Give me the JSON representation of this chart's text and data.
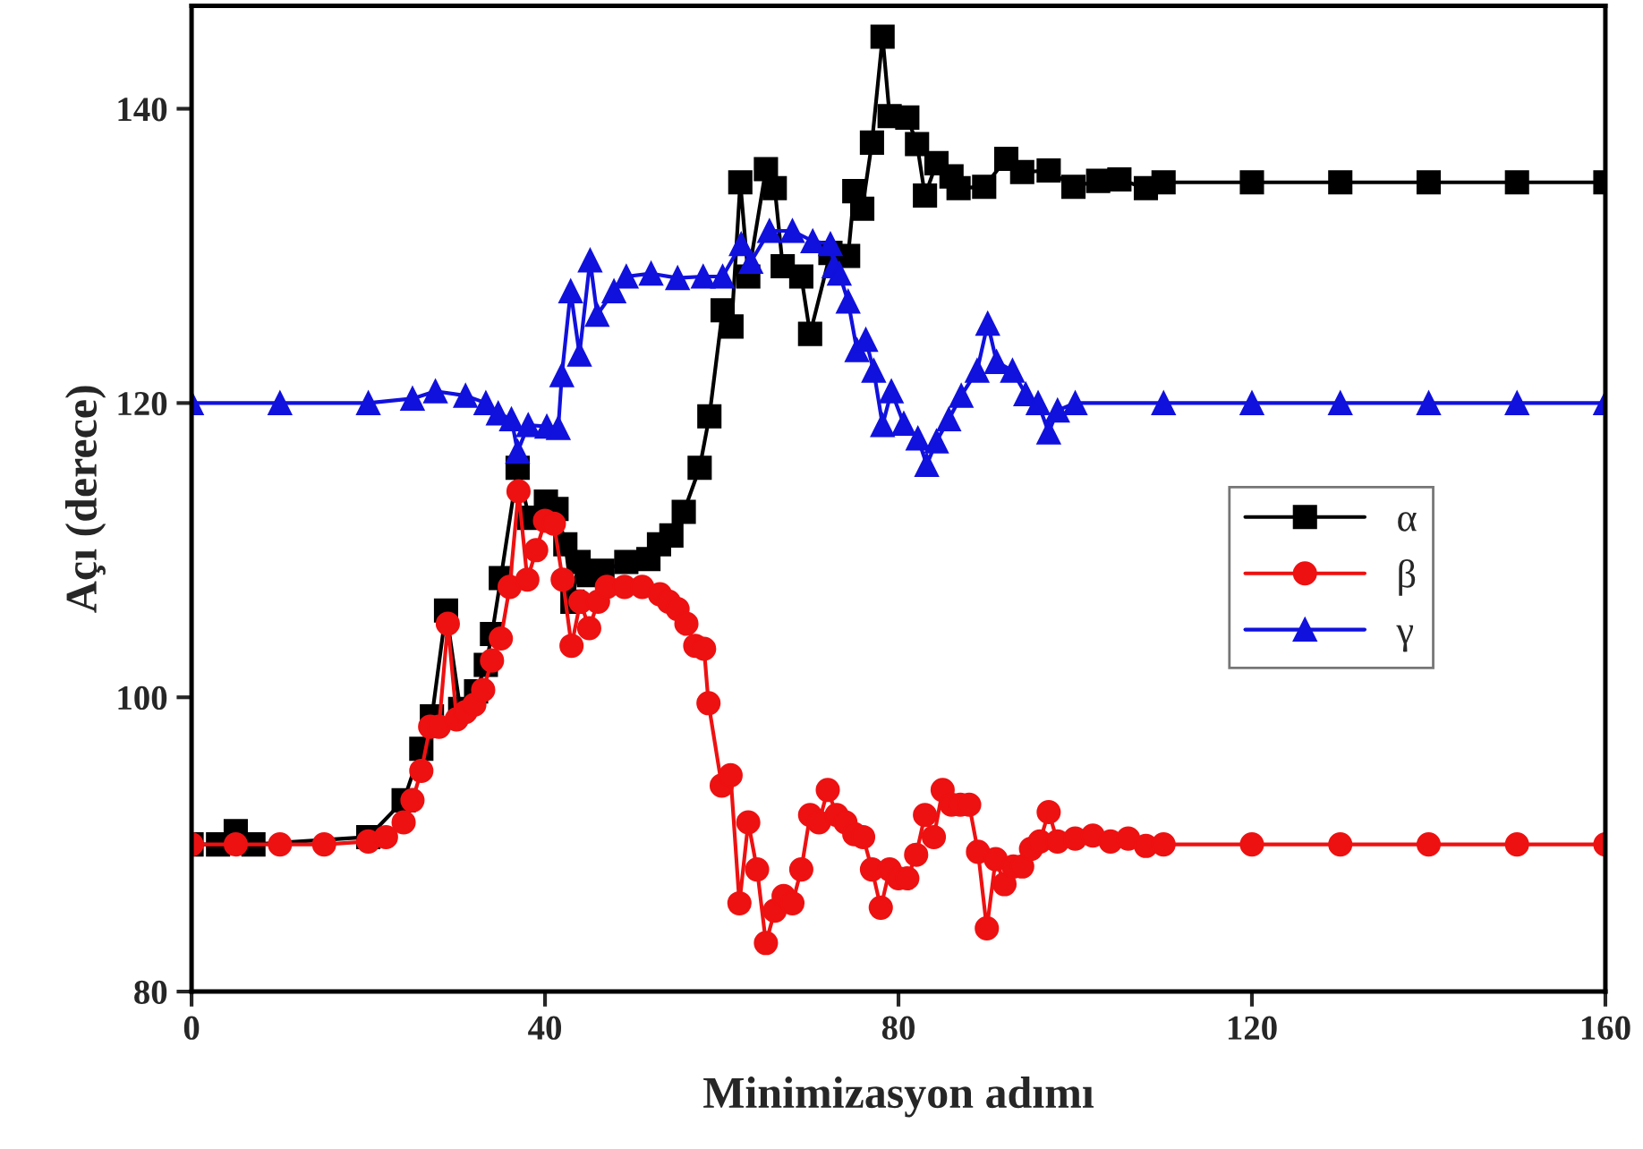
{
  "chart_data": {
    "type": "line",
    "xlabel": "Minimizasyon adımı",
    "ylabel": "Açı (derece)",
    "xlim": [
      0,
      160
    ],
    "xticks": [
      0,
      40,
      80,
      120,
      160
    ],
    "ylim": [
      80,
      147
    ],
    "yticks": [
      80,
      100,
      120,
      140
    ],
    "grid": false,
    "legend": "right",
    "line_style": "solid",
    "series": [
      {
        "name": "α",
        "color": "#000000",
        "marker": "square",
        "x": [
          0,
          3,
          5,
          7,
          20,
          24,
          26,
          27.2,
          28.8,
          30.4,
          32.2,
          33.3,
          34,
          35,
          36.9,
          38.2,
          40.1,
          41.3,
          42.3,
          43.1,
          43.8,
          45,
          46.5,
          49.2,
          51.7,
          52.9,
          54.3,
          55.7,
          57.5,
          58.6,
          60.1,
          61.1,
          62.1,
          63,
          65,
          66,
          66.9,
          69,
          70,
          72.3,
          74.3,
          75,
          75.9,
          77,
          78.2,
          79,
          81,
          82.1,
          83,
          84.3,
          86,
          86.8,
          89.7,
          92.2,
          94,
          97,
          99.8,
          102.6,
          105,
          108,
          110,
          120,
          130,
          140,
          150,
          160
        ],
        "values": [
          90,
          90,
          90.9,
          90,
          90.5,
          93,
          96.5,
          98.7,
          105.9,
          99.2,
          100.4,
          102.2,
          104.3,
          108.1,
          115.6,
          112.2,
          113.3,
          112.8,
          110.4,
          106.5,
          109.2,
          108.3,
          108.6,
          109.2,
          109.4,
          110.4,
          111,
          112.6,
          115.6,
          119.1,
          126.3,
          125.2,
          135,
          128.6,
          135.9,
          134.6,
          129.3,
          128.6,
          124.7,
          130.2,
          130,
          134.4,
          133.2,
          137.7,
          144.9,
          139.5,
          139.4,
          137.6,
          134.1,
          136.3,
          135.4,
          134.6,
          134.7,
          136.6,
          135.7,
          135.8,
          134.7,
          135.1,
          135.2,
          134.6,
          135,
          135,
          135,
          135,
          135,
          135
        ]
      },
      {
        "name": "β",
        "color": "#ee1111",
        "marker": "circle",
        "x": [
          0,
          5,
          10,
          15,
          20,
          22,
          24,
          25,
          26,
          27,
          28,
          29,
          30,
          31,
          32,
          33,
          34,
          35,
          36,
          37,
          38,
          39,
          40,
          41,
          42,
          43,
          44,
          45,
          46,
          47,
          49,
          51,
          53,
          54,
          55,
          56,
          57,
          58,
          58.5,
          60,
          61,
          62,
          63,
          64,
          65,
          66,
          67,
          68,
          69,
          70,
          71,
          72,
          73,
          74,
          75,
          76,
          77,
          78,
          79,
          80,
          81,
          82,
          83,
          84,
          85,
          86,
          87,
          88,
          89,
          90,
          91,
          92,
          93,
          94,
          95,
          96,
          97,
          98,
          100,
          102,
          104,
          106,
          108,
          110,
          120,
          130,
          140,
          150,
          160
        ],
        "values": [
          90,
          90,
          90,
          90,
          90.2,
          90.5,
          91.5,
          93,
          95,
          98,
          98,
          105,
          98.5,
          99,
          99.5,
          100.5,
          102.5,
          104,
          107.5,
          114,
          108,
          110,
          112,
          111.8,
          108,
          103.5,
          106.5,
          104.7,
          106.5,
          107.5,
          107.5,
          107.5,
          107,
          106.5,
          106,
          105,
          103.5,
          103.3,
          99.6,
          94,
          94.7,
          86,
          91.5,
          88.3,
          83.3,
          85.5,
          86.5,
          86,
          88.3,
          92,
          91.5,
          93.7,
          92,
          91.5,
          90.7,
          90.5,
          88.3,
          85.7,
          88.3,
          87.7,
          87.7,
          89.3,
          92,
          90.5,
          93.7,
          92.7,
          92.7,
          92.7,
          89.5,
          84.3,
          89,
          87.3,
          88.5,
          88.5,
          89.7,
          90.2,
          92.2,
          90.2,
          90.4,
          90.6,
          90.2,
          90.4,
          89.9,
          90,
          90,
          90,
          90,
          90,
          90
        ]
      },
      {
        "name": "γ",
        "color": "#1111dd",
        "marker": "triangle",
        "x": [
          0,
          10,
          20,
          25,
          27.6,
          31,
          33.3,
          34.7,
          36.2,
          36.9,
          38.1,
          40.2,
          41.5,
          41.9,
          42.9,
          43.9,
          45.1,
          45.9,
          47.8,
          49.2,
          52,
          55,
          57.9,
          60.1,
          62.2,
          63.3,
          65.4,
          68,
          70.3,
          72.3,
          72.7,
          73.3,
          74.3,
          75.3,
          76.3,
          77.2,
          78.2,
          79.2,
          80.6,
          82.2,
          83.2,
          84.3,
          85.7,
          87.1,
          88.9,
          90.1,
          91.1,
          92.9,
          94.4,
          95.8,
          97,
          98,
          100,
          110,
          120,
          130,
          140,
          150,
          160
        ],
        "values": [
          120,
          120,
          120,
          120.3,
          120.8,
          120.5,
          120,
          119.3,
          118.9,
          116.7,
          118.5,
          118.4,
          118.3,
          121.9,
          127.6,
          123.3,
          129.7,
          126,
          127.6,
          128.6,
          128.8,
          128.5,
          128.6,
          128.6,
          130.8,
          129.6,
          131.7,
          131.7,
          131,
          130.8,
          129.3,
          128.8,
          126.9,
          123.6,
          124.3,
          122.2,
          118.5,
          120.8,
          118.6,
          117.6,
          115.8,
          117.4,
          118.9,
          120.5,
          122.2,
          125.4,
          122.8,
          122.2,
          120.6,
          120,
          118,
          119.5,
          120,
          120,
          120,
          120,
          120,
          120,
          120
        ]
      }
    ]
  }
}
